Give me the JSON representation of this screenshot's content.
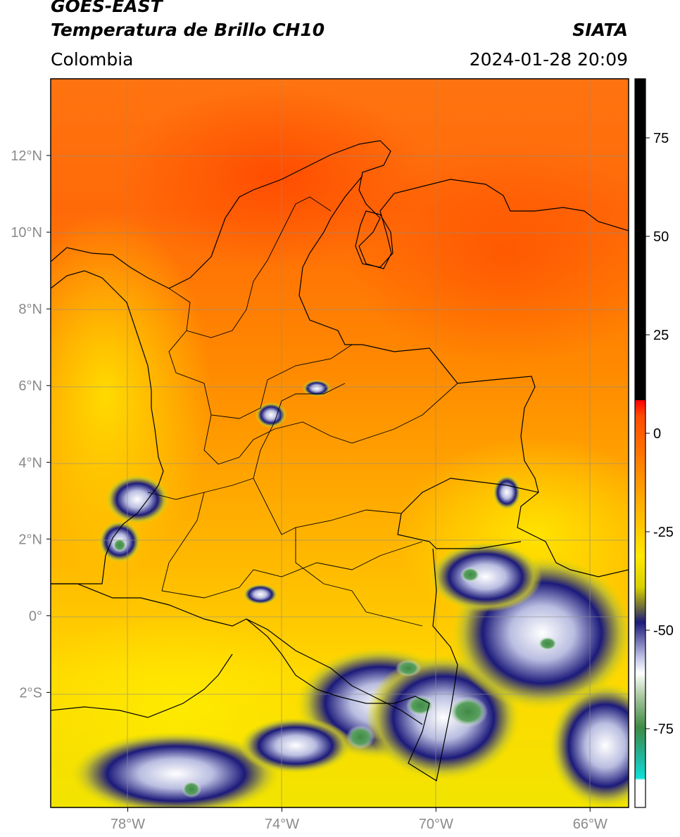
{
  "header": {
    "satellite": "GOES-EAST",
    "product": "Temperatura de Brillo CH10",
    "region": "Colombia",
    "organization": "SIATA",
    "timestamp": "2024-01-28 20:09"
  },
  "map": {
    "extent": {
      "lon": [
        -80,
        -65
      ],
      "lat": [
        -5,
        14
      ]
    },
    "lon_ticks": [
      {
        "value": -78,
        "label": "78°W"
      },
      {
        "value": -74,
        "label": "74°W"
      },
      {
        "value": -70,
        "label": "70°W"
      },
      {
        "value": -66,
        "label": "66°W"
      }
    ],
    "lat_ticks": [
      {
        "value": 12,
        "label": "12°N"
      },
      {
        "value": 10,
        "label": "10°N"
      },
      {
        "value": 8,
        "label": "8°N"
      },
      {
        "value": 6,
        "label": "6°N"
      },
      {
        "value": 4,
        "label": "4°N"
      },
      {
        "value": 2,
        "label": "2°N"
      },
      {
        "value": 0,
        "label": "0°"
      },
      {
        "value": -2,
        "label": "2°S"
      }
    ],
    "gridlines": true
  },
  "colorbar": {
    "range": [
      -95,
      90
    ],
    "ticks": [
      {
        "value": 75,
        "label": "75"
      },
      {
        "value": 50,
        "label": "50"
      },
      {
        "value": 25,
        "label": "25"
      },
      {
        "value": 0,
        "label": "0"
      },
      {
        "value": -25,
        "label": "-25"
      },
      {
        "value": -50,
        "label": "-50"
      },
      {
        "value": -75,
        "label": "-75"
      }
    ],
    "colors": {
      "warm_red": "#ff5000",
      "orange": "#ff9800",
      "yellow": "#ffee00",
      "olive": "#b9b735",
      "navy": "#1c1a7a",
      "white": "#ffffff",
      "green": "#3f8a45",
      "cyan": "#10d8d0",
      "black": "#000000"
    }
  }
}
